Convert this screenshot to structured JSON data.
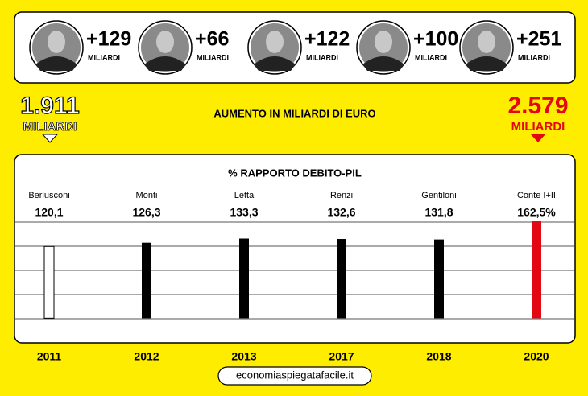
{
  "header": {
    "items": [
      {
        "amount": "+129",
        "unit": "MILIARDI"
      },
      {
        "amount": "+66",
        "unit": "MILIARDI"
      },
      {
        "amount": "+122",
        "unit": "MILIARDI"
      },
      {
        "amount": "+100",
        "unit": "MILIARDI"
      },
      {
        "amount": "+251",
        "unit": "MILIARDI"
      }
    ],
    "start": {
      "amount": "1.911",
      "unit": "MILIARDI"
    },
    "middle": "AUMENTO IN MILIARDI DI EURO",
    "end": {
      "amount": "2.579",
      "unit": "MILIARDI"
    }
  },
  "chart_data": {
    "type": "bar",
    "title": "% RAPPORTO DEBITO-PIL",
    "categories": [
      "2011",
      "2012",
      "2013",
      "2017",
      "2018",
      "2020"
    ],
    "leaders": [
      "Berlusconi",
      "Monti",
      "Letta",
      "Renzi",
      "Gentiloni",
      "Conte I+II"
    ],
    "values": [
      120.1,
      126.3,
      133.3,
      132.6,
      131.8,
      162.5
    ],
    "value_labels": [
      "120,1",
      "126,3",
      "133,3",
      "132,6",
      "131,8",
      "162,5%"
    ],
    "colors": [
      "#ffffff",
      "#000000",
      "#000000",
      "#000000",
      "#000000",
      "#e30613"
    ],
    "ylim": [
      -40,
      165
    ]
  },
  "footer": "economiaspiegatafacile.it"
}
